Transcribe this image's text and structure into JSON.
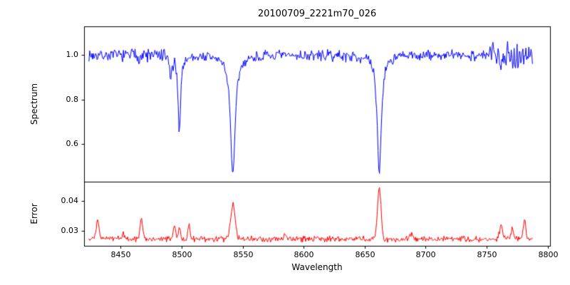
{
  "chart": {
    "title": "20100709_2221m70_026",
    "xlabel": "Wavelength",
    "xlim": [
      8420,
      8802
    ],
    "xticks": [
      8450,
      8500,
      8550,
      8600,
      8650,
      8700,
      8750,
      8800
    ],
    "background": "#ffffff",
    "axis_color": "#000000"
  },
  "chart_data": [
    {
      "type": "line",
      "name": "spectrum",
      "ylabel": "Spectrum",
      "color": "#0000ff",
      "ylim": [
        0.43,
        1.13
      ],
      "yticks": [
        0.6,
        0.8,
        1.0
      ],
      "ytick_labels": [
        "0.6",
        "0.8",
        "1.0"
      ],
      "x_start": 8424,
      "x_end": 8788,
      "baseline": 1.0,
      "noise_amplitude": 0.03,
      "noise_regions": [
        {
          "from": 8458,
          "to": 8497,
          "factor": 1.5
        },
        {
          "from": 8752,
          "to": 8790,
          "factor": 2.6
        }
      ],
      "absorption_lines": [
        {
          "center": 8491,
          "depth": 0.1,
          "width": 1.0
        },
        {
          "center": 8498,
          "depth": 0.345,
          "width": 1.3
        },
        {
          "center": 8542,
          "depth": 0.545,
          "width": 2.3
        },
        {
          "center": 8662,
          "depth": 0.535,
          "width": 2.0
        }
      ]
    },
    {
      "type": "line",
      "name": "error",
      "ylabel": "Error",
      "color": "#ff0000",
      "ylim": [
        0.025,
        0.0465
      ],
      "yticks": [
        0.03,
        0.04
      ],
      "ytick_labels": [
        "0.03",
        "0.04"
      ],
      "x_start": 8424,
      "x_end": 8788,
      "baseline": 0.0273,
      "noise_amplitude": 0.0012,
      "peaks": [
        {
          "center": 8431,
          "height": 0.0065,
          "width": 1.5
        },
        {
          "center": 8452,
          "height": 0.0022,
          "width": 1.5
        },
        {
          "center": 8467,
          "height": 0.007,
          "width": 1.5
        },
        {
          "center": 8494,
          "height": 0.0045,
          "width": 1.5
        },
        {
          "center": 8498,
          "height": 0.004,
          "width": 1.2
        },
        {
          "center": 8506,
          "height": 0.0045,
          "width": 1.2
        },
        {
          "center": 8542,
          "height": 0.0118,
          "width": 2.5
        },
        {
          "center": 8585,
          "height": 0.0015,
          "width": 1.5
        },
        {
          "center": 8662,
          "height": 0.0172,
          "width": 2.0
        },
        {
          "center": 8688,
          "height": 0.0018,
          "width": 1.5
        },
        {
          "center": 8762,
          "height": 0.005,
          "width": 1.8
        },
        {
          "center": 8771,
          "height": 0.0035,
          "width": 1.5
        },
        {
          "center": 8781,
          "height": 0.0068,
          "width": 1.5
        }
      ]
    }
  ]
}
